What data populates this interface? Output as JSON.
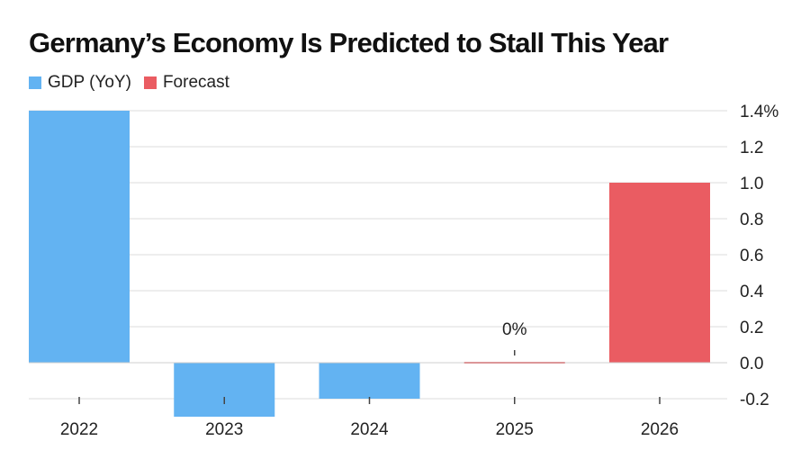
{
  "chart_data": {
    "type": "bar",
    "title": "Germany’s Economy Is Predicted to Stall This Year",
    "categories": [
      "2022",
      "2023",
      "2024",
      "2025",
      "2026"
    ],
    "series": [
      {
        "name": "GDP (YoY)",
        "color": "#63b3f2",
        "values": [
          1.4,
          -0.3,
          -0.2,
          null,
          null
        ]
      },
      {
        "name": "Forecast",
        "color": "#ea5c62",
        "values": [
          null,
          null,
          null,
          0.0,
          1.0
        ]
      }
    ],
    "annotations": [
      {
        "category": "2025",
        "text": "0%"
      }
    ],
    "yaxis": {
      "ticks": [
        1.4,
        1.2,
        1.0,
        0.8,
        0.6,
        0.4,
        0.2,
        0.0,
        -0.2
      ],
      "tick_labels": [
        "1.4%",
        "1.2",
        "1.0",
        "0.8",
        "0.6",
        "0.4",
        "0.2",
        "0.0",
        "-0.2"
      ],
      "position": "right"
    },
    "ylim": [
      -0.3,
      1.4
    ],
    "xlabel": "",
    "ylabel": "",
    "grid": true,
    "legend_position": "top-left"
  }
}
